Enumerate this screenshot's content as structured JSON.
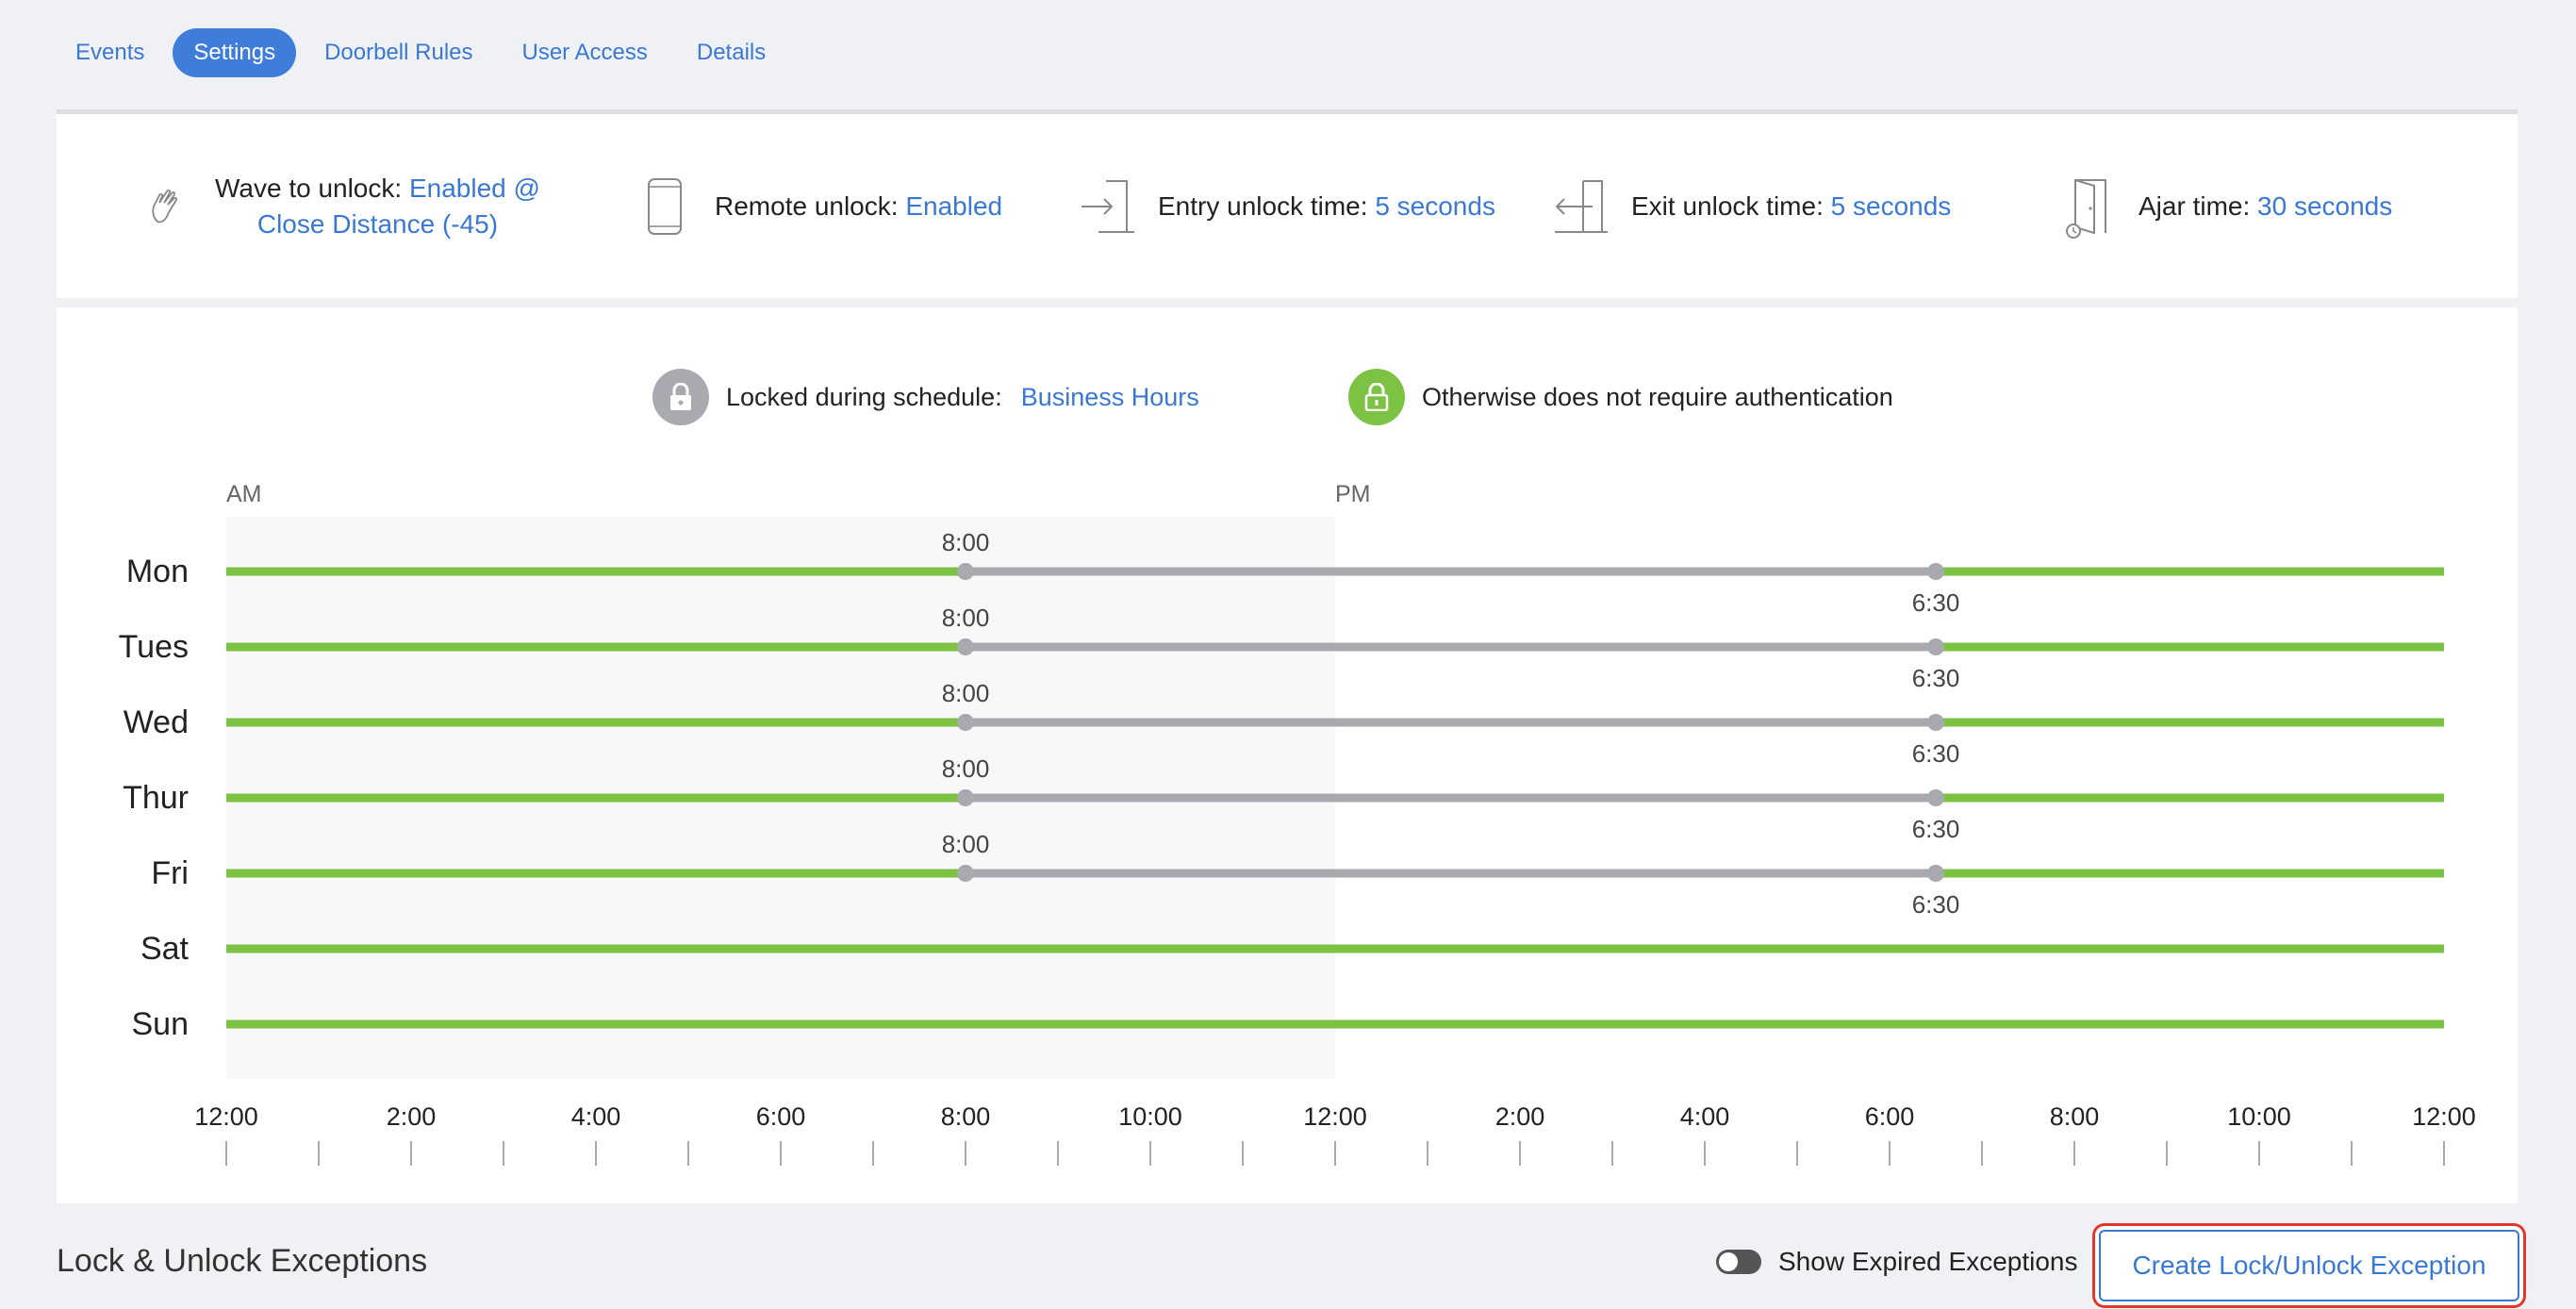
{
  "tabs": [
    {
      "label": "Events",
      "active": false
    },
    {
      "label": "Settings",
      "active": true
    },
    {
      "label": "Doorbell Rules",
      "active": false
    },
    {
      "label": "User Access",
      "active": false
    },
    {
      "label": "Details",
      "active": false
    }
  ],
  "settings": {
    "wave": {
      "label": "Wave to unlock:",
      "value_line1": "Enabled @",
      "value_line2": "Close Distance (-45)",
      "icon": "wave-hand-icon"
    },
    "remote": {
      "label": "Remote unlock:",
      "value": "Enabled",
      "icon": "phone-icon"
    },
    "entry": {
      "label": "Entry unlock time:",
      "value": "5 seconds",
      "icon": "door-entry-icon"
    },
    "exit": {
      "label": "Exit unlock time:",
      "value": "5 seconds",
      "icon": "door-exit-icon"
    },
    "ajar": {
      "label": "Ajar time:",
      "value": "30 seconds",
      "icon": "door-ajar-icon"
    }
  },
  "legend": {
    "locked_label": "Locked during schedule:",
    "schedule_name": "Business Hours",
    "otherwise_label": "Otherwise does not require authentication"
  },
  "colors": {
    "accent": "#3a78d4",
    "unlocked": "#7cc243",
    "locked": "#a9aaaf"
  },
  "chart_data": {
    "type": "timeline",
    "period_labels": [
      "AM",
      "PM"
    ],
    "x_range_hours": [
      0,
      24
    ],
    "x_tick_labels": [
      "12:00",
      "2:00",
      "4:00",
      "6:00",
      "8:00",
      "10:00",
      "12:00",
      "2:00",
      "4:00",
      "6:00",
      "8:00",
      "10:00",
      "12:00"
    ],
    "days": [
      {
        "day": "Mon",
        "locked": [
          8.0,
          18.5
        ],
        "start_label": "8:00",
        "end_label": "6:30"
      },
      {
        "day": "Tues",
        "locked": [
          8.0,
          18.5
        ],
        "start_label": "8:00",
        "end_label": "6:30"
      },
      {
        "day": "Wed",
        "locked": [
          8.0,
          18.5
        ],
        "start_label": "8:00",
        "end_label": "6:30"
      },
      {
        "day": "Thur",
        "locked": [
          8.0,
          18.5
        ],
        "start_label": "8:00",
        "end_label": "6:30"
      },
      {
        "day": "Fri",
        "locked": [
          8.0,
          18.5
        ],
        "start_label": "8:00",
        "end_label": "6:30"
      },
      {
        "day": "Sat",
        "locked": null
      },
      {
        "day": "Sun",
        "locked": null
      }
    ]
  },
  "footer": {
    "title": "Lock & Unlock Exceptions",
    "toggle_label": "Show Expired Exceptions",
    "create_button": "Create Lock/Unlock Exception"
  }
}
